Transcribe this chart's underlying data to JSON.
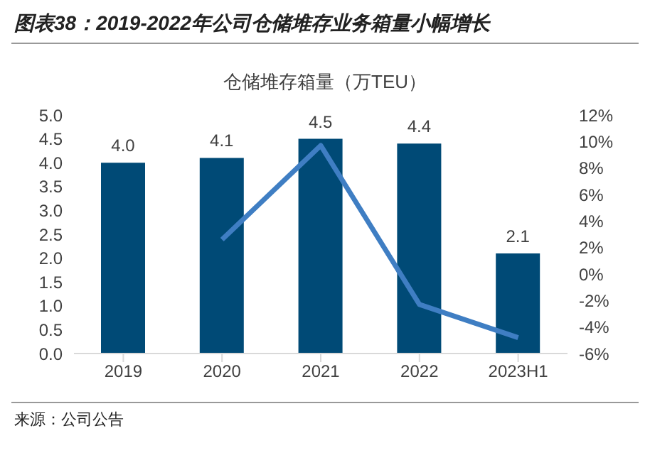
{
  "chart_data": {
    "type": "bar",
    "title": "图表38：2019-2022年公司仓储堆存业务箱量小幅增长",
    "subtitle": "仓储堆存箱量（万TEU）",
    "categories": [
      "2019",
      "2020",
      "2021",
      "2022",
      "2023H1"
    ],
    "series": [
      {
        "color": "#004a76",
        "values": [
          4.0,
          4.1,
          4.5,
          4.4,
          2.1
        ],
        "value_labels": [
          "4.0",
          "4.1",
          "4.5",
          "4.4",
          "2.1"
        ]
      },
      {
        "type": "line",
        "axis": "y2",
        "color": "#3f7ec3",
        "values": [
          null,
          2.6,
          9.7,
          -2.3,
          -4.8
        ]
      }
    ],
    "ylim": [
      0,
      5
    ],
    "yticks": [
      {
        "value": 0,
        "label": "0.0"
      },
      {
        "value": 0.5,
        "label": "0.5"
      },
      {
        "value": 1,
        "label": "1.0"
      },
      {
        "value": 1.5,
        "label": "1.5"
      },
      {
        "value": 2,
        "label": "2.0"
      },
      {
        "value": 2.5,
        "label": "2.5"
      },
      {
        "value": 3,
        "label": "3.0"
      },
      {
        "value": 3.5,
        "label": "3.5"
      },
      {
        "value": 4,
        "label": "4.0"
      },
      {
        "value": 4.5,
        "label": "4.5"
      },
      {
        "value": 5,
        "label": "5.0"
      }
    ],
    "y2lim": [
      -6,
      12
    ],
    "y2ticks": [
      {
        "value": -6,
        "label": "-6%"
      },
      {
        "value": -4,
        "label": "-4%"
      },
      {
        "value": -2,
        "label": "-2%"
      },
      {
        "value": 0,
        "label": "0%"
      },
      {
        "value": 2,
        "label": "2%"
      },
      {
        "value": 4,
        "label": "4%"
      },
      {
        "value": 6,
        "label": "6%"
      },
      {
        "value": 8,
        "label": "8%"
      },
      {
        "value": 10,
        "label": "10%"
      },
      {
        "value": 12,
        "label": "12%"
      }
    ],
    "grid": false,
    "legend": false,
    "marker": "none",
    "annotations": [
      "来源：公司公告"
    ]
  }
}
